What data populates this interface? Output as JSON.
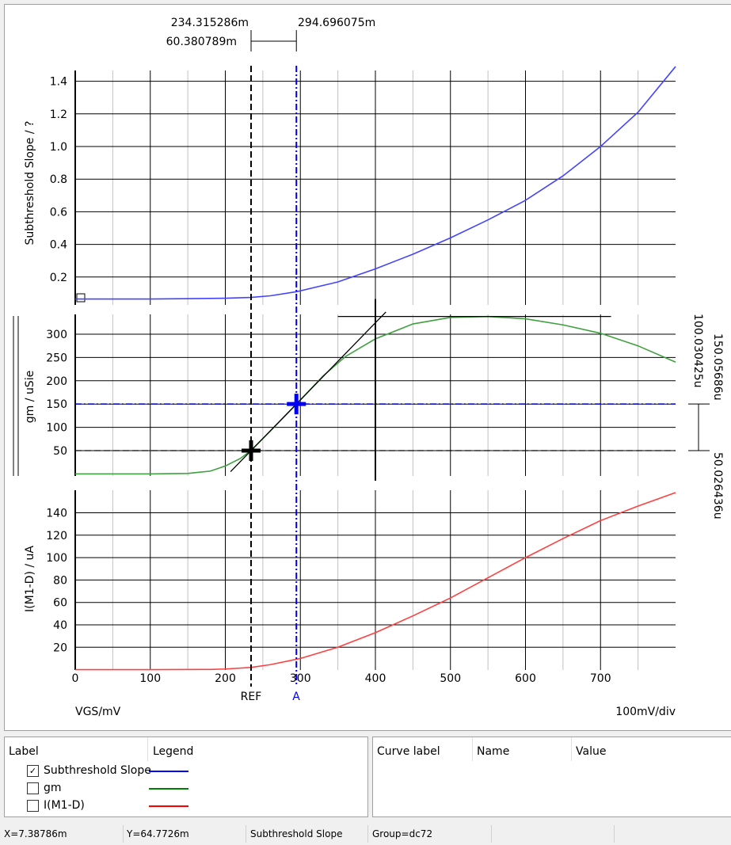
{
  "chart_data": [
    {
      "type": "line",
      "ylabel": "Subthreshold Slope / ?",
      "ylim": [
        0.05,
        1.48
      ],
      "yticks": [
        0.2,
        0.4,
        0.6,
        0.8,
        1.0,
        1.2,
        1.4
      ],
      "series": [
        {
          "name": "Subthreshold Slope",
          "color": "#4444ff",
          "x": [
            0,
            100,
            200,
            234,
            260,
            295,
            350,
            400,
            450,
            500,
            550,
            600,
            650,
            700,
            750,
            800
          ],
          "y": [
            0.065,
            0.065,
            0.07,
            0.075,
            0.085,
            0.11,
            0.17,
            0.25,
            0.34,
            0.44,
            0.55,
            0.67,
            0.82,
            1.0,
            1.21,
            1.49
          ]
        }
      ]
    },
    {
      "type": "line",
      "ylabel": "gm / uSie",
      "ylim": [
        0,
        340
      ],
      "yticks": [
        50,
        100,
        150,
        200,
        250,
        300
      ],
      "series": [
        {
          "name": "gm",
          "color": "#40a040",
          "x": [
            0,
            100,
            150,
            180,
            200,
            220,
            234,
            260,
            295,
            330,
            360,
            400,
            450,
            500,
            550,
            600,
            650,
            700,
            750,
            800
          ],
          "y": [
            0,
            0,
            1,
            6,
            17,
            33,
            50,
            92,
            150,
            210,
            252,
            290,
            322,
            336,
            338,
            333,
            320,
            302,
            275,
            240
          ]
        }
      ]
    },
    {
      "type": "line",
      "ylabel": "I(M1-D) / uA",
      "ylim": [
        0,
        160
      ],
      "yticks": [
        20,
        40,
        60,
        80,
        100,
        120,
        140
      ],
      "series": [
        {
          "name": "I(M1-D)",
          "color": "#ff4040",
          "x": [
            0,
            100,
            180,
            200,
            234,
            260,
            300,
            350,
            400,
            450,
            500,
            550,
            600,
            650,
            700,
            750,
            800
          ],
          "y": [
            0,
            0,
            0.2,
            0.6,
            2,
            4.5,
            10,
            20,
            33,
            48,
            64,
            82,
            100,
            117,
            133,
            146,
            158
          ]
        }
      ]
    }
  ],
  "xaxis": {
    "label": "VGS/mV",
    "scale": "100mV/div",
    "xlim": [
      0,
      800
    ],
    "ticks": [
      "0",
      "100",
      "200",
      "300",
      "400",
      "500",
      "600",
      "700"
    ]
  },
  "cursors": {
    "ref": {
      "label": "REF",
      "x": 234.315286,
      "x_text": "234.315286m",
      "y": 50.026436,
      "y_text": "50.026436u",
      "color": "#000000"
    },
    "a": {
      "label": "A",
      "x": 294.696075,
      "x_text": "294.696075m",
      "y": 150.05686,
      "y_text": "150.05686u",
      "color": "#0000ee"
    },
    "dx_text": "60.380789m",
    "dy_text": "100.030425u"
  },
  "tangent": {
    "x1": 207,
    "x2": 414,
    "vline_x": 400,
    "hline_y": 338
  },
  "legend": {
    "headers": [
      "Label",
      "Legend"
    ],
    "items": [
      {
        "label": "Subthreshold Slope",
        "checked": true,
        "color": "#0000ff"
      },
      {
        "label": "gm",
        "checked": false,
        "color": "#008000"
      },
      {
        "label": "I(M1-D)",
        "checked": false,
        "color": "#ff0000"
      }
    ]
  },
  "values_table": {
    "headers": [
      "Curve label",
      "Name",
      "Value"
    ]
  },
  "status": {
    "x": "X=7.38786m",
    "y": "Y=64.7726m",
    "curve": "Subthreshold Slope",
    "group": "Group=dc72"
  }
}
